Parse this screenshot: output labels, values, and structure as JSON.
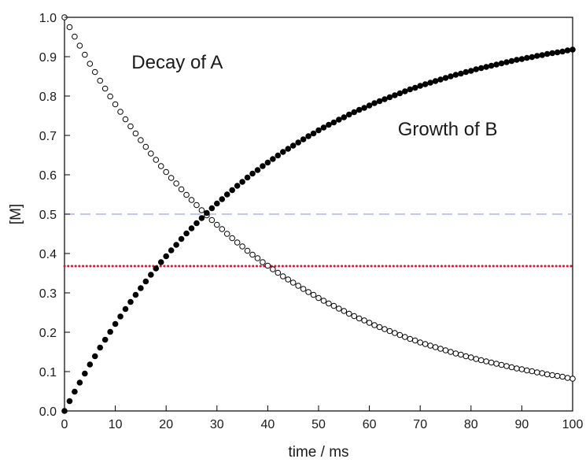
{
  "chart_data": {
    "type": "scatter",
    "xlabel": "time / ms",
    "ylabel": "[M]",
    "xlim": [
      0,
      100
    ],
    "ylim": [
      0,
      1.0
    ],
    "xticks": [
      "0",
      "10",
      "20",
      "30",
      "40",
      "50",
      "60",
      "70",
      "80",
      "90",
      "100"
    ],
    "yticks": [
      "0.0",
      "0.1",
      "0.2",
      "0.3",
      "0.4",
      "0.5",
      "0.6",
      "0.7",
      "0.8",
      "0.9",
      "1.0"
    ],
    "grid": false,
    "series": [
      {
        "marker": "open-circle",
        "color": "#000000",
        "x": [
          0,
          1,
          2,
          3,
          4,
          5,
          6,
          7,
          8,
          9,
          10,
          11,
          12,
          13,
          14,
          15,
          16,
          17,
          18,
          19,
          20,
          21,
          22,
          23,
          24,
          25,
          26,
          27,
          28,
          29,
          30,
          31,
          32,
          33,
          34,
          35,
          36,
          37,
          38,
          39,
          40,
          41,
          42,
          43,
          44,
          45,
          46,
          47,
          48,
          49,
          50,
          51,
          52,
          53,
          54,
          55,
          56,
          57,
          58,
          59,
          60,
          61,
          62,
          63,
          64,
          65,
          66,
          67,
          68,
          69,
          70,
          71,
          72,
          73,
          74,
          75,
          76,
          77,
          78,
          79,
          80,
          81,
          82,
          83,
          84,
          85,
          86,
          87,
          88,
          89,
          90,
          91,
          92,
          93,
          94,
          95,
          96,
          97,
          98,
          99,
          100
        ],
        "y": [
          1.0,
          0.975,
          0.951,
          0.928,
          0.905,
          0.882,
          0.861,
          0.839,
          0.819,
          0.799,
          0.779,
          0.76,
          0.741,
          0.723,
          0.705,
          0.688,
          0.671,
          0.654,
          0.638,
          0.622,
          0.607,
          0.592,
          0.578,
          0.563,
          0.549,
          0.536,
          0.523,
          0.51,
          0.497,
          0.485,
          0.473,
          0.462,
          0.45,
          0.439,
          0.428,
          0.418,
          0.407,
          0.397,
          0.388,
          0.378,
          0.369,
          0.36,
          0.351,
          0.342,
          0.334,
          0.326,
          0.318,
          0.31,
          0.302,
          0.295,
          0.287,
          0.28,
          0.273,
          0.267,
          0.26,
          0.254,
          0.247,
          0.241,
          0.235,
          0.23,
          0.224,
          0.218,
          0.213,
          0.208,
          0.203,
          0.198,
          0.193,
          0.188,
          0.183,
          0.179,
          0.174,
          0.17,
          0.166,
          0.162,
          0.158,
          0.154,
          0.15,
          0.146,
          0.143,
          0.139,
          0.136,
          0.132,
          0.129,
          0.126,
          0.123,
          0.12,
          0.117,
          0.114,
          0.111,
          0.108,
          0.106,
          0.103,
          0.101,
          0.098,
          0.096,
          0.093,
          0.091,
          0.089,
          0.087,
          0.084,
          0.082
        ]
      },
      {
        "marker": "filled-circle",
        "color": "#000000",
        "x": [
          0,
          1,
          2,
          3,
          4,
          5,
          6,
          7,
          8,
          9,
          10,
          11,
          12,
          13,
          14,
          15,
          16,
          17,
          18,
          19,
          20,
          21,
          22,
          23,
          24,
          25,
          26,
          27,
          28,
          29,
          30,
          31,
          32,
          33,
          34,
          35,
          36,
          37,
          38,
          39,
          40,
          41,
          42,
          43,
          44,
          45,
          46,
          47,
          48,
          49,
          50,
          51,
          52,
          53,
          54,
          55,
          56,
          57,
          58,
          59,
          60,
          61,
          62,
          63,
          64,
          65,
          66,
          67,
          68,
          69,
          70,
          71,
          72,
          73,
          74,
          75,
          76,
          77,
          78,
          79,
          80,
          81,
          82,
          83,
          84,
          85,
          86,
          87,
          88,
          89,
          90,
          91,
          92,
          93,
          94,
          95,
          96,
          97,
          98,
          99,
          100
        ],
        "y": [
          0.0,
          0.025,
          0.049,
          0.072,
          0.095,
          0.118,
          0.139,
          0.161,
          0.181,
          0.201,
          0.221,
          0.24,
          0.259,
          0.277,
          0.295,
          0.312,
          0.329,
          0.346,
          0.362,
          0.378,
          0.393,
          0.408,
          0.422,
          0.437,
          0.451,
          0.464,
          0.477,
          0.49,
          0.503,
          0.515,
          0.527,
          0.538,
          0.55,
          0.561,
          0.572,
          0.582,
          0.593,
          0.603,
          0.612,
          0.622,
          0.631,
          0.64,
          0.649,
          0.658,
          0.666,
          0.674,
          0.682,
          0.69,
          0.698,
          0.705,
          0.713,
          0.72,
          0.727,
          0.733,
          0.74,
          0.746,
          0.753,
          0.759,
          0.765,
          0.77,
          0.776,
          0.782,
          0.787,
          0.792,
          0.797,
          0.802,
          0.807,
          0.812,
          0.817,
          0.821,
          0.826,
          0.83,
          0.834,
          0.838,
          0.842,
          0.846,
          0.85,
          0.854,
          0.857,
          0.861,
          0.864,
          0.868,
          0.871,
          0.874,
          0.877,
          0.88,
          0.883,
          0.886,
          0.889,
          0.892,
          0.894,
          0.897,
          0.899,
          0.902,
          0.904,
          0.907,
          0.909,
          0.911,
          0.913,
          0.916,
          0.918
        ]
      }
    ],
    "reference_lines": [
      {
        "y": 0.5,
        "style": "dashed",
        "color": "#9da3ee"
      },
      {
        "y": 0.368,
        "style": "dotted",
        "color": "#e8102e"
      }
    ],
    "annotations": [
      {
        "text": "Decay of A",
        "x": 13.2,
        "y": 0.87
      },
      {
        "text": "Growth of B",
        "x": 65.6,
        "y": 0.7
      }
    ]
  }
}
